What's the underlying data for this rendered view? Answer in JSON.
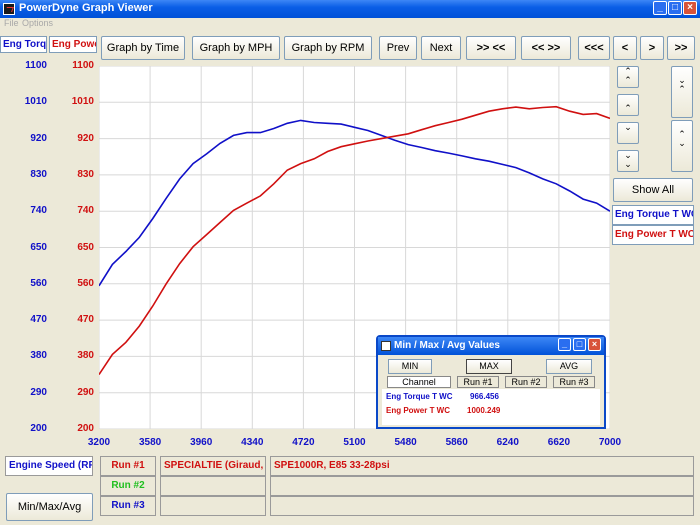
{
  "window": {
    "title": "PowerDyne Graph Viewer"
  },
  "menu": {
    "file": "File",
    "options": "Options"
  },
  "toolbar": {
    "graph_by_time": "Graph by Time",
    "graph_by_mph": "Graph by MPH",
    "graph_by_rpm": "Graph by RPM",
    "prev": "Prev",
    "next": "Next",
    "zoom_in": ">> <<",
    "zoom_out": "<< >>",
    "scroll_far_left": "<<<",
    "scroll_left": "<",
    "scroll_right": ">",
    "scroll_far_right": ">>"
  },
  "channels": {
    "left_header": "Eng Torq",
    "right_header": "Eng Powe",
    "legend_torque": "Eng Torque T WC",
    "legend_power": "Eng Power T WC",
    "x_channel": "Engine Speed (RPM)"
  },
  "side": {
    "show_all": "Show All"
  },
  "runs": [
    {
      "label": "Run #1",
      "color": "#d01010",
      "driver": "SPECIALTIE (Giraud, J)",
      "notes": "SPE1000R, E85 33-28psi"
    },
    {
      "label": "Run #2",
      "color": "#20c020",
      "driver": "",
      "notes": ""
    },
    {
      "label": "Run #3",
      "color": "#1010c8",
      "driver": "",
      "notes": ""
    }
  ],
  "minmax_button": "Min/Max/Avg",
  "dialog": {
    "title": "Min / Max / Avg Values",
    "tab_min": "MIN",
    "tab_max": "MAX",
    "tab_avg": "AVG",
    "col_channel": "Channel",
    "col_run1": "Run #1",
    "col_run2": "Run #2",
    "col_run3": "Run #3",
    "rows": [
      {
        "channel": "Eng Torque T WC",
        "run1": "966.456",
        "color": "#1010c8"
      },
      {
        "channel": "Eng Power T WC",
        "run1": "1000.249",
        "color": "#d01010"
      }
    ]
  },
  "chart_data": {
    "type": "line",
    "xlabel": "",
    "ylabel": "",
    "xlim": [
      3200,
      7000
    ],
    "ylim": [
      200,
      1100
    ],
    "x_ticks": [
      3200,
      3580,
      3960,
      4340,
      4720,
      5100,
      5480,
      5860,
      6240,
      6620,
      7000
    ],
    "y_ticks_left": [
      1100,
      1010,
      920,
      830,
      740,
      650,
      560,
      470,
      380,
      290,
      200
    ],
    "y_ticks_right": [
      1100,
      1010,
      920,
      830,
      740,
      650,
      560,
      470,
      380,
      290,
      200
    ],
    "grid": true,
    "series": [
      {
        "name": "Eng Torque T WC",
        "color": "#1010c8",
        "x": [
          3200,
          3300,
          3400,
          3500,
          3600,
          3700,
          3800,
          3900,
          4000,
          4100,
          4200,
          4300,
          4400,
          4500,
          4600,
          4700,
          4800,
          4900,
          5000,
          5100,
          5200,
          5300,
          5400,
          5500,
          5600,
          5700,
          5800,
          5900,
          6000,
          6100,
          6200,
          6300,
          6400,
          6500,
          6600,
          6700,
          6800,
          6900,
          7000
        ],
        "y": [
          555,
          608,
          640,
          675,
          722,
          772,
          820,
          858,
          882,
          908,
          928,
          935,
          935,
          945,
          958,
          965,
          960,
          958,
          956,
          948,
          940,
          928,
          916,
          905,
          898,
          890,
          884,
          877,
          870,
          864,
          856,
          848,
          835,
          820,
          808,
          790,
          770,
          760,
          740
        ]
      },
      {
        "name": "Eng Power T WC",
        "color": "#d01010",
        "x": [
          3200,
          3300,
          3400,
          3500,
          3600,
          3700,
          3800,
          3900,
          4000,
          4100,
          4200,
          4300,
          4400,
          4500,
          4600,
          4700,
          4800,
          4900,
          5000,
          5100,
          5200,
          5300,
          5400,
          5500,
          5600,
          5700,
          5800,
          5900,
          6000,
          6100,
          6200,
          6300,
          6400,
          6500,
          6600,
          6700,
          6800,
          6900,
          7000
        ],
        "y": [
          335,
          385,
          415,
          455,
          505,
          560,
          610,
          652,
          682,
          712,
          742,
          760,
          778,
          808,
          842,
          858,
          870,
          888,
          900,
          907,
          914,
          920,
          926,
          932,
          942,
          952,
          960,
          968,
          978,
          988,
          994,
          998,
          994,
          997,
          999,
          988,
          980,
          982,
          970
        ]
      }
    ]
  }
}
